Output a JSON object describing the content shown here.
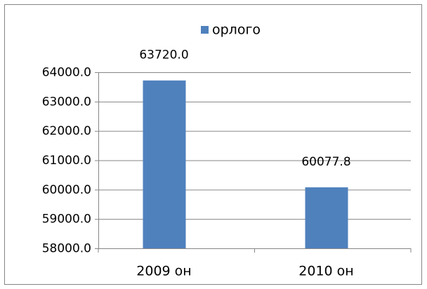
{
  "chart_data": {
    "type": "bar",
    "categories": [
      "2009 он",
      "2010 он"
    ],
    "series": [
      {
        "name": "орлого",
        "color": "#4f81bd",
        "values": [
          63720.0,
          60077.8
        ],
        "value_labels": [
          "63720.0",
          "60077.8"
        ]
      }
    ],
    "ylim": [
      58000,
      64000
    ],
    "yticks": [
      {
        "value": 58000,
        "label": "58000.0"
      },
      {
        "value": 59000,
        "label": "59000.0"
      },
      {
        "value": 60000,
        "label": "60000.0"
      },
      {
        "value": 61000,
        "label": "61000.0"
      },
      {
        "value": 62000,
        "label": "62000.0"
      },
      {
        "value": 63000,
        "label": "63000.0"
      },
      {
        "value": 64000,
        "label": "64000.0"
      }
    ],
    "grid": true,
    "legend": "top"
  }
}
